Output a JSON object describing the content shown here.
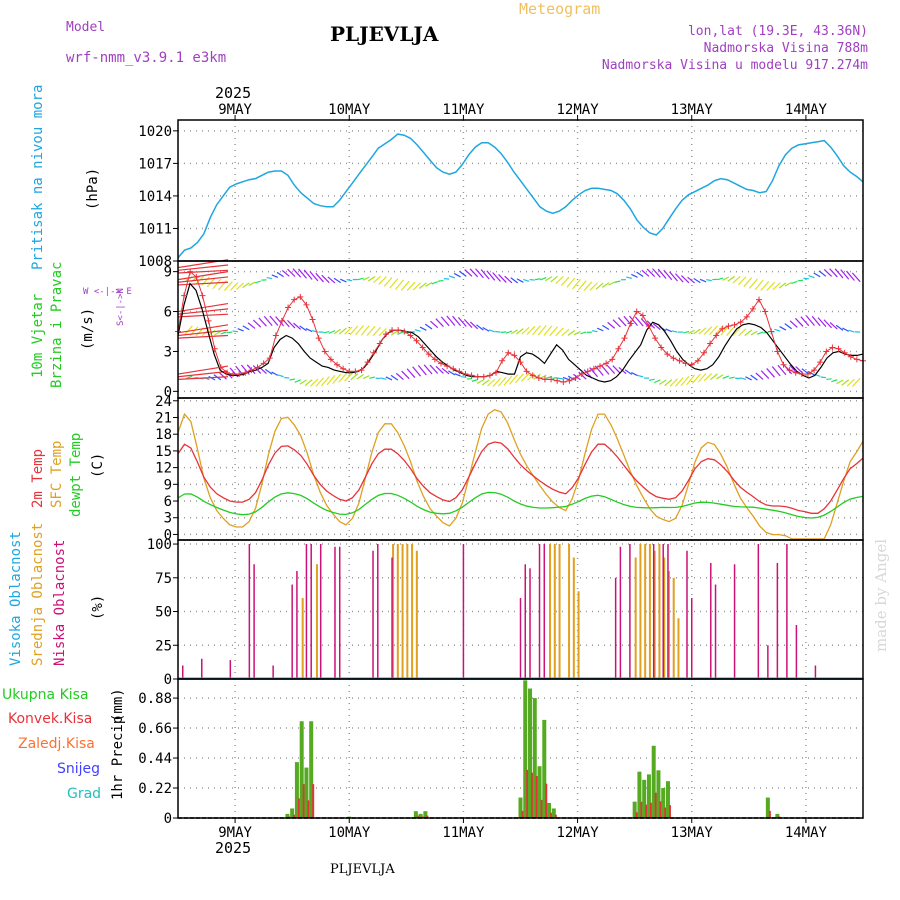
{
  "header": {
    "model_label": "Model",
    "model_name": "wrf-nmm_v3.9.1 e3km",
    "meteogram": "Meteogram",
    "station": "PLJEVLJA",
    "lonlat": "lon,lat (19.3E, 43.36N)",
    "altitude": "Nadmorska Visina 788m",
    "model_altitude": "Nadmorska Visina u modelu 917.274m",
    "year_top": "2025",
    "year_bottom": "2025",
    "footer": "PLJEVLJA",
    "credit": "made by Angel"
  },
  "colors": {
    "pressure": "#1fa6e0",
    "wind_obs": "#e8323a",
    "temp2m": "#e8323a",
    "sfc": "#e0a020",
    "dewpt": "#22cc22",
    "high_cloud": "#1fa6e0",
    "mid_cloud": "#e0a020",
    "low_cloud": "#cc1177",
    "precip_total": "#55aa22",
    "precip_conv": "#e8323a",
    "label_purple": "#a040c0",
    "label_orange": "#f0c060"
  },
  "chart_data": {
    "type": "meteogram",
    "days": [
      "9MAY",
      "10MAY",
      "11MAY",
      "12MAY",
      "13MAY",
      "14MAY"
    ],
    "x_range_hours": [
      0,
      144
    ],
    "panels": [
      {
        "id": "pressure",
        "type": "line",
        "ylabel_main": "Pritisak na nivou mora",
        "ylabel_unit": "(hPa)",
        "ylim": [
          1008,
          1021
        ],
        "ticks": [
          "1008",
          "1011",
          "1014",
          "1017",
          "1020"
        ],
        "tick_values": [
          1008,
          1011,
          1014,
          1017,
          1020
        ],
        "values": [
          1008.3,
          1009,
          1009.2,
          1009.7,
          1010.5,
          1012,
          1013.2,
          1014,
          1014.8,
          1015.1,
          1015.3,
          1015.5,
          1015.6,
          1015.9,
          1016.2,
          1016.3,
          1016.3,
          1015.9,
          1015,
          1014.3,
          1013.8,
          1013.3,
          1013.1,
          1013,
          1013,
          1013.6,
          1014.4,
          1015.2,
          1016,
          1016.8,
          1017.6,
          1018.4,
          1018.8,
          1019.2,
          1019.7,
          1019.6,
          1019.3,
          1018.7,
          1018,
          1017.3,
          1016.6,
          1016.2,
          1016,
          1016.2,
          1016.9,
          1017.8,
          1018.5,
          1018.9,
          1018.9,
          1018.5,
          1017.9,
          1017.1,
          1016.2,
          1015.4,
          1014.6,
          1013.8,
          1013,
          1012.6,
          1012.4,
          1012.6,
          1013,
          1013.6,
          1014.1,
          1014.5,
          1014.7,
          1014.7,
          1014.6,
          1014.5,
          1014.2,
          1013.6,
          1012.8,
          1011.8,
          1011.1,
          1010.6,
          1010.4,
          1011,
          1011.9,
          1012.8,
          1013.6,
          1014.1,
          1014.4,
          1014.7,
          1015,
          1015.4,
          1015.6,
          1015.5,
          1015.2,
          1014.9,
          1014.6,
          1014.5,
          1014.3,
          1014.4,
          1015.4,
          1016.8,
          1017.8,
          1018.4,
          1018.7,
          1018.8,
          1018.9,
          1019,
          1019.1,
          1018.5,
          1017.7,
          1016.8,
          1016.2,
          1015.8,
          1015.3
        ]
      },
      {
        "id": "wind",
        "type": "line",
        "ylabel_main": "10m Vjetar",
        "ylabel_sub": "Brzina i Pravac",
        "ylabel_unit": "(m/s)",
        "compass": "W <-|-> E",
        "compass_vertical": "S<-|->N",
        "ylim": [
          -0.5,
          9.8
        ],
        "ticks": [
          "0",
          "3",
          "6",
          "9"
        ],
        "tick_values": [
          0,
          3,
          6,
          9
        ],
        "speed": [
          4.2,
          6.5,
          8.1,
          7.6,
          6.2,
          4.5,
          2.8,
          1.6,
          1.3,
          1.2,
          1.2,
          1.3,
          1.5,
          1.6,
          1.8,
          2.1,
          3.3,
          3.9,
          4.2,
          4.0,
          3.6,
          3.0,
          2.5,
          2.2,
          1.9,
          1.8,
          1.6,
          1.5,
          1.4,
          1.4,
          1.5,
          1.8,
          2.4,
          3.1,
          3.9,
          4.4,
          4.6,
          4.6,
          4.5,
          4.4,
          4.1,
          3.6,
          3.1,
          2.6,
          2.2,
          1.9,
          1.6,
          1.4,
          1.2,
          1.1,
          1.1,
          1.1,
          1.2,
          1.5,
          1.4,
          1.3,
          1.3,
          2.6,
          2.9,
          2.8,
          2.5,
          2.1,
          2.8,
          3.5,
          3.1,
          2.4,
          2.0,
          1.6,
          1.2,
          1.0,
          0.8,
          0.7,
          0.8,
          1.1,
          1.6,
          2.3,
          2.9,
          3.5,
          4.6,
          5.2,
          5.0,
          4.5,
          3.8,
          3.0,
          2.4,
          2.0,
          1.7,
          1.6,
          1.7,
          2.0,
          2.6,
          3.4,
          4.1,
          4.7,
          5.0,
          5.1,
          5.0,
          4.8,
          4.4,
          3.8,
          3.2,
          2.6,
          2.0,
          1.5,
          1.2,
          1.0,
          1.2,
          1.8,
          2.5,
          2.9,
          3.0,
          2.8,
          2.7,
          2.7,
          2.8
        ],
        "gust": [
          4.5,
          7.2,
          9.0,
          8.6,
          7.2,
          5.3,
          3.2,
          1.8,
          1.4,
          1.3,
          1.3,
          1.4,
          1.6,
          1.8,
          2.1,
          2.5,
          4.2,
          5.3,
          6.3,
          6.9,
          7.1,
          6.5,
          5.4,
          4.0,
          3.0,
          2.4,
          2.0,
          1.7,
          1.5,
          1.5,
          1.6,
          2.2,
          2.9,
          3.6,
          4.3,
          4.6,
          4.6,
          4.5,
          4.2,
          3.8,
          3.3,
          2.8,
          2.4,
          2.1,
          1.9,
          1.7,
          1.5,
          1.3,
          1.2,
          1.1,
          1.1,
          1.2,
          1.4,
          2.3,
          2.9,
          2.7,
          2.2,
          1.5,
          1.2,
          1.0,
          0.9,
          0.9,
          0.8,
          0.7,
          0.8,
          1.0,
          1.3,
          1.5,
          1.7,
          1.9,
          2.1,
          2.4,
          3.2,
          4.0,
          5.1,
          6.0,
          5.7,
          4.9,
          4.0,
          3.3,
          2.8,
          2.5,
          2.3,
          2.1,
          2.0,
          2.3,
          2.9,
          3.6,
          4.2,
          4.7,
          4.9,
          5.0,
          5.2,
          5.6,
          6.2,
          6.9,
          6.0,
          4.5,
          3.0,
          2.0,
          1.6,
          1.4,
          1.3,
          1.3,
          1.6,
          2.2,
          3.0,
          3.3,
          3.2,
          2.9,
          2.6,
          2.4,
          2.3
        ]
      },
      {
        "id": "temperature",
        "type": "line",
        "ylabel_main": "2m Temp",
        "ylabel_sub": "SFC Temp",
        "ylabel_third": "dewpt Temp",
        "ylabel_unit": "(C)",
        "ylim": [
          -1,
          24.5
        ],
        "ticks": [
          "0",
          "3",
          "6",
          "9",
          "12",
          "15",
          "18",
          "21",
          "24"
        ],
        "tick_values": [
          0,
          3,
          6,
          9,
          12,
          15,
          18,
          21,
          24
        ],
        "temp2m": [
          14.5,
          16.2,
          15.5,
          13.0,
          10.3,
          8.5,
          7.3,
          6.6,
          6.0,
          5.8,
          5.8,
          6.3,
          7.5,
          9.8,
          12.5,
          14.6,
          15.8,
          15.9,
          15.2,
          14.2,
          12.6,
          10.6,
          9.0,
          7.8,
          7.0,
          6.3,
          6.0,
          6.6,
          8.0,
          10.3,
          12.7,
          14.5,
          15.3,
          15.3,
          14.5,
          13.3,
          11.8,
          10.0,
          8.6,
          7.5,
          6.8,
          6.2,
          5.9,
          6.6,
          8.0,
          10.3,
          12.7,
          14.9,
          16.2,
          16.6,
          16.4,
          15.4,
          13.9,
          12.5,
          11.4,
          10.5,
          9.6,
          8.8,
          8.1,
          7.6,
          7.3,
          8.4,
          10.2,
          12.6,
          14.8,
          16.2,
          16.2,
          15.2,
          13.9,
          12.4,
          10.9,
          9.6,
          8.5,
          7.5,
          6.8,
          6.5,
          6.3,
          6.6,
          7.8,
          9.7,
          11.8,
          13.1,
          13.6,
          13.4,
          12.5,
          11.3,
          9.8,
          8.5,
          7.6,
          6.8,
          5.9,
          5.3,
          5.1,
          5.1,
          5.0,
          4.7,
          4.3,
          4.1,
          3.8,
          3.8,
          4.6,
          6.0,
          8.0,
          10.0,
          11.8,
          12.7,
          13.7
        ]
      },
      {
        "id": "clouds",
        "type": "bar",
        "ylabel_main": "Visoka Oblacnost",
        "ylabel_sub": "Srednja Oblacnost",
        "ylabel_third": "Niska Oblacnost",
        "ylabel_unit": "(%)",
        "ylim": [
          0,
          103
        ],
        "ticks": [
          "0",
          "25",
          "50",
          "75",
          "100"
        ],
        "tick_values": [
          0,
          25,
          50,
          75,
          100
        ],
        "low": [
          [
            1,
            10
          ],
          [
            5,
            15
          ],
          [
            11,
            14
          ],
          [
            15,
            100
          ],
          [
            16,
            85
          ],
          [
            20,
            10
          ],
          [
            24,
            70
          ],
          [
            25,
            80
          ],
          [
            27,
            100
          ],
          [
            28,
            100
          ],
          [
            30,
            100
          ],
          [
            33,
            98
          ],
          [
            34,
            98
          ],
          [
            41,
            95
          ],
          [
            42,
            100
          ],
          [
            45,
            90
          ],
          [
            60,
            100
          ],
          [
            72,
            60
          ],
          [
            73,
            85
          ],
          [
            74,
            82
          ],
          [
            76,
            100
          ],
          [
            77,
            100
          ],
          [
            92,
            75
          ],
          [
            93,
            98
          ],
          [
            95,
            100
          ],
          [
            100,
            100
          ],
          [
            102,
            100
          ],
          [
            103,
            100
          ],
          [
            107,
            95
          ],
          [
            108,
            60
          ],
          [
            112,
            86
          ],
          [
            113,
            70
          ],
          [
            117,
            85
          ],
          [
            122,
            100
          ],
          [
            124,
            25
          ],
          [
            126,
            86
          ],
          [
            128,
            100
          ],
          [
            130,
            40
          ],
          [
            134,
            10
          ]
        ],
        "mid": [
          [
            26,
            60
          ],
          [
            29,
            85
          ],
          [
            45,
            100
          ],
          [
            46,
            100
          ],
          [
            47,
            100
          ],
          [
            48,
            100
          ],
          [
            49,
            100
          ],
          [
            50,
            95
          ],
          [
            78,
            100
          ],
          [
            79,
            100
          ],
          [
            80,
            100
          ],
          [
            82,
            100
          ],
          [
            83,
            90
          ],
          [
            84,
            65
          ],
          [
            96,
            90
          ],
          [
            97,
            100
          ],
          [
            98,
            100
          ],
          [
            99,
            100
          ],
          [
            100,
            95
          ],
          [
            101,
            100
          ],
          [
            102,
            90
          ],
          [
            103,
            80
          ],
          [
            104,
            75
          ],
          [
            105,
            45
          ]
        ]
      },
      {
        "id": "precip",
        "type": "bar",
        "ylabel_main": "1hr Precip",
        "ylabel_unit": "(mm)",
        "ylim": [
          0,
          1.02
        ],
        "ticks": [
          "0",
          "0.22",
          "0.44",
          "0.66",
          "0.88"
        ],
        "tick_values": [
          0,
          0.22,
          0.44,
          0.66,
          0.88
        ],
        "legend": [
          "Ukupna Kisa",
          "Konvek.Kisa",
          "Zaledj.Kisa",
          "Snijeg",
          "Grad"
        ],
        "total": [
          [
            23,
            0.03
          ],
          [
            24,
            0.07
          ],
          [
            25,
            0.41
          ],
          [
            26,
            0.71
          ],
          [
            27,
            0.37
          ],
          [
            28,
            0.71
          ],
          [
            36,
            0.01
          ],
          [
            50,
            0.05
          ],
          [
            51,
            0.03
          ],
          [
            52,
            0.05
          ],
          [
            72,
            0.15
          ],
          [
            73,
            1.01
          ],
          [
            74,
            0.95
          ],
          [
            75,
            0.88
          ],
          [
            76,
            0.38
          ],
          [
            77,
            0.72
          ],
          [
            78,
            0.11
          ],
          [
            79,
            0.07
          ],
          [
            96,
            0.12
          ],
          [
            97,
            0.34
          ],
          [
            98,
            0.28
          ],
          [
            99,
            0.32
          ],
          [
            100,
            0.53
          ],
          [
            101,
            0.35
          ],
          [
            102,
            0.22
          ],
          [
            103,
            0.27
          ],
          [
            124,
            0.15
          ],
          [
            126,
            0.03
          ]
        ]
      }
    ]
  }
}
